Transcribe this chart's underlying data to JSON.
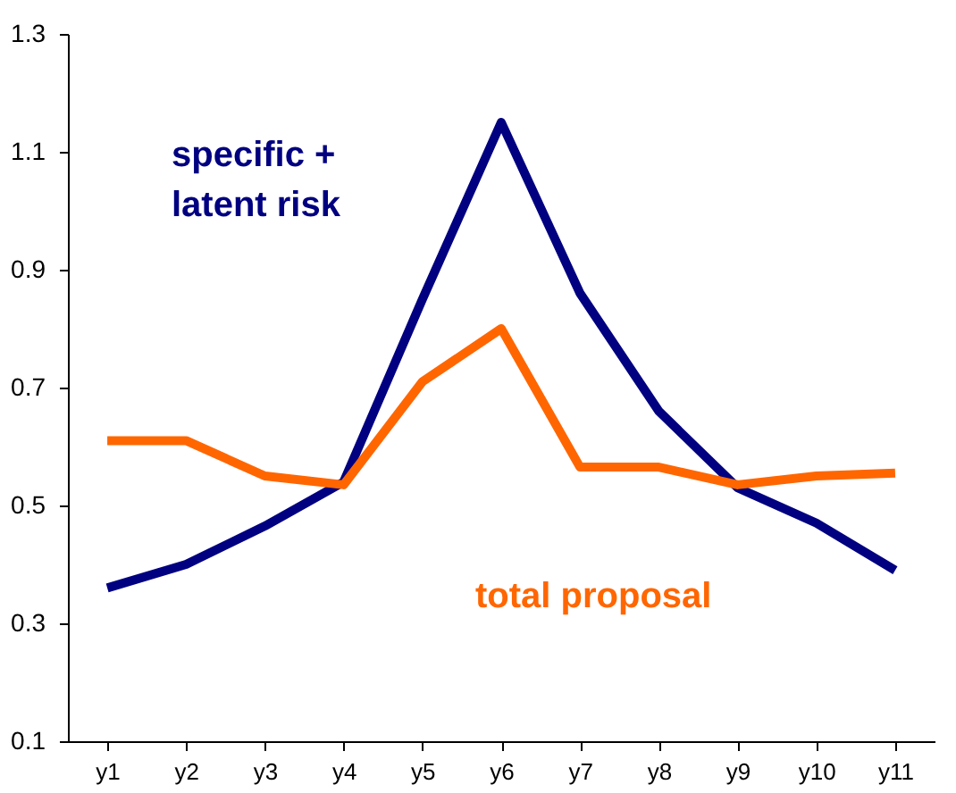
{
  "chart_data": {
    "type": "line",
    "categories": [
      "y1",
      "y2",
      "y3",
      "y4",
      "y5",
      "y6",
      "y7",
      "y8",
      "y9",
      "y10",
      "y11"
    ],
    "series": [
      {
        "name": "specific + latent risk",
        "color": "#000080",
        "values": [
          0.36,
          0.4,
          0.465,
          0.54,
          0.85,
          1.15,
          0.86,
          0.66,
          0.53,
          0.47,
          0.39
        ]
      },
      {
        "name": "total proposal",
        "color": "#ff6600",
        "values": [
          0.61,
          0.61,
          0.55,
          0.535,
          0.71,
          0.8,
          0.565,
          0.565,
          0.535,
          0.55,
          0.555
        ]
      }
    ],
    "ylim": [
      0.1,
      1.3
    ],
    "yticks": [
      0.1,
      0.3,
      0.5,
      0.7,
      0.9,
      1.1,
      1.3
    ],
    "grid": false,
    "marker": "none",
    "line_style": "solid"
  }
}
